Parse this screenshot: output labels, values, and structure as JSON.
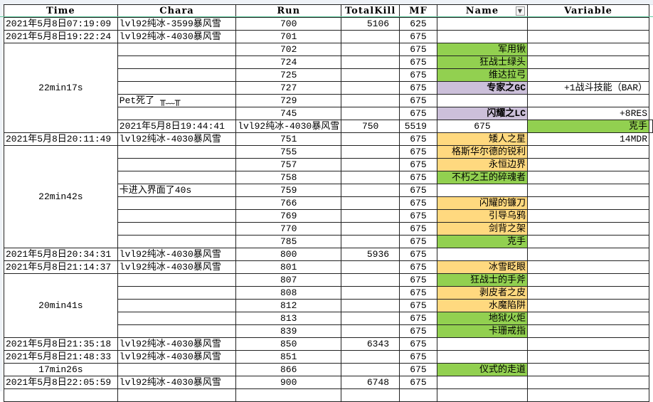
{
  "headers": {
    "time": "Time",
    "chara": "Chara",
    "run": "Run",
    "kill": "TotalKill",
    "mf": "MF",
    "name": "Name",
    "variable": "Variable"
  },
  "colors": {
    "green": "#92d050",
    "yellow": "#ffd97f",
    "purple": "#ccc0da"
  },
  "rows": [
    {
      "time": "2021年5月8日07:19:09",
      "chara": "lvl92纯冰-3599暴风雪",
      "run": "700",
      "kill": "5106",
      "mf": "625",
      "name": "",
      "color": "",
      "variable": ""
    },
    {
      "time": "2021年5月8日19:22:24",
      "chara": "lvl92纯冰-4030暴风雪",
      "run": "701",
      "kill": "",
      "mf": "675",
      "name": "",
      "color": "",
      "variable": ""
    },
    {
      "group": "22min17s",
      "span": 7,
      "chara": "",
      "run": "702",
      "kill": "",
      "mf": "675",
      "name": "军用锹",
      "color": "green",
      "variable": ""
    },
    {
      "chara": "",
      "run": "724",
      "kill": "",
      "mf": "675",
      "name": "狂战士绿头",
      "color": "green",
      "variable": ""
    },
    {
      "chara": "",
      "run": "725",
      "kill": "",
      "mf": "675",
      "name": "维达拉弓",
      "color": "green",
      "variable": ""
    },
    {
      "chara": "",
      "run": "727",
      "kill": "",
      "mf": "675",
      "name": "专家之GC",
      "color": "purple",
      "bold": true,
      "variable": "+1战斗技能（BAR）"
    },
    {
      "chara": "Pet死了 ╥﹏╥",
      "run": "729",
      "kill": "",
      "mf": "675",
      "name": "",
      "color": "",
      "variable": ""
    },
    {
      "chara": "",
      "run": "745",
      "kill": "",
      "mf": "675",
      "name": "闪耀之LC",
      "color": "purple",
      "bold": true,
      "variable": "+8RES"
    },
    {
      "time": "2021年5月8日19:44:41",
      "chara": "lvl92纯冰-4030暴风雪",
      "run": "750",
      "kill": "5519",
      "mf": "675",
      "name": "克手",
      "color": "green",
      "variable": ""
    },
    {
      "time": "2021年5月8日20:11:49",
      "chara": "lvl92纯冰-4030暴风雪",
      "run": "751",
      "kill": "",
      "mf": "675",
      "name": "矮人之星",
      "color": "yellow",
      "variable": "14MDR"
    },
    {
      "group": "22min42s",
      "span": 8,
      "chara": "",
      "run": "755",
      "kill": "",
      "mf": "675",
      "name": "格斯华尔德的锐利",
      "color": "yellow",
      "variable": ""
    },
    {
      "chara": "",
      "run": "757",
      "kill": "",
      "mf": "675",
      "name": "永恒边界",
      "color": "yellow",
      "variable": ""
    },
    {
      "chara": "",
      "run": "758",
      "kill": "",
      "mf": "675",
      "name": "不朽之王的碎魂者",
      "color": "green",
      "variable": ""
    },
    {
      "chara": "卡进入界面了40s",
      "run": "759",
      "kill": "",
      "mf": "675",
      "name": "",
      "color": "",
      "variable": ""
    },
    {
      "chara": "",
      "run": "766",
      "kill": "",
      "mf": "675",
      "name": "闪耀的镰刀",
      "color": "yellow",
      "variable": ""
    },
    {
      "chara": "",
      "run": "769",
      "kill": "",
      "mf": "675",
      "name": "引导乌鸦",
      "color": "yellow",
      "variable": ""
    },
    {
      "chara": "",
      "run": "770",
      "kill": "",
      "mf": "675",
      "name": "剑背之架",
      "color": "yellow",
      "variable": ""
    },
    {
      "chara": "",
      "run": "785",
      "kill": "",
      "mf": "675",
      "name": "克手",
      "color": "green",
      "variable": ""
    },
    {
      "time": "2021年5月8日20:34:31",
      "chara": "lvl92纯冰-4030暴风雪",
      "run": "800",
      "kill": "5936",
      "mf": "675",
      "name": "",
      "color": "",
      "variable": ""
    },
    {
      "time": "2021年5月8日21:14:37",
      "chara": "lvl92纯冰-4030暴风雪",
      "run": "801",
      "kill": "",
      "mf": "675",
      "name": "冰雪眨眼",
      "color": "yellow",
      "variable": ""
    },
    {
      "group": "20min41s",
      "span": 5,
      "chara": "",
      "run": "807",
      "kill": "",
      "mf": "675",
      "name": "狂战士的手斧",
      "color": "green",
      "variable": ""
    },
    {
      "chara": "",
      "run": "808",
      "kill": "",
      "mf": "675",
      "name": "剥皮者之皮",
      "color": "yellow",
      "variable": ""
    },
    {
      "chara": "",
      "run": "812",
      "kill": "",
      "mf": "675",
      "name": "水魔陷阱",
      "color": "yellow",
      "variable": ""
    },
    {
      "chara": "",
      "run": "813",
      "kill": "",
      "mf": "675",
      "name": "地狱火炬",
      "color": "green",
      "variable": ""
    },
    {
      "chara": "",
      "run": "839",
      "kill": "",
      "mf": "675",
      "name": "卡珊戒指",
      "color": "green",
      "variable": ""
    },
    {
      "time": "2021年5月8日21:35:18",
      "chara": "lvl92纯冰-4030暴风雪",
      "run": "850",
      "kill": "6343",
      "mf": "675",
      "name": "",
      "color": "",
      "variable": ""
    },
    {
      "time": "2021年5月8日21:48:33",
      "chara": "lvl92纯冰-4030暴风雪",
      "run": "851",
      "kill": "",
      "mf": "675",
      "name": "",
      "color": "",
      "variable": ""
    },
    {
      "group": "17min26s",
      "span": 1,
      "chara": "",
      "run": "866",
      "kill": "",
      "mf": "675",
      "name": "仪式的走道",
      "color": "green",
      "variable": ""
    },
    {
      "time": "2021年5月8日22:05:59",
      "chara": "lvl92纯冰-4030暴风雪",
      "run": "900",
      "kill": "6748",
      "mf": "675",
      "name": "",
      "color": "",
      "variable": ""
    }
  ]
}
